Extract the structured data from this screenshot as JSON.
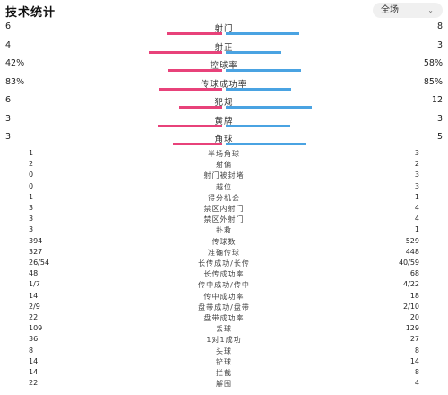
{
  "header": {
    "title": "技术统计",
    "filter_value": "全场",
    "chevron": "⌄"
  },
  "colors": {
    "home": "#e8427a",
    "away": "#4aa3e2"
  },
  "bar_stats": [
    {
      "label": "射门",
      "home": "6",
      "away": "8",
      "home_share": 0.43,
      "away_share": 0.57
    },
    {
      "label": "射正",
      "home": "4",
      "away": "3",
      "home_share": 0.57,
      "away_share": 0.43
    },
    {
      "label": "控球率",
      "home": "42%",
      "away": "58%",
      "home_share": 0.42,
      "away_share": 0.58
    },
    {
      "label": "传球成功率",
      "home": "83%",
      "away": "85%",
      "home_share": 0.49,
      "away_share": 0.51
    },
    {
      "label": "犯规",
      "home": "6",
      "away": "12",
      "home_share": 0.33,
      "away_share": 0.67
    },
    {
      "label": "黄牌",
      "home": "3",
      "away": "3",
      "home_share": 0.5,
      "away_share": 0.5
    },
    {
      "label": "角球",
      "home": "3",
      "away": "5",
      "home_share": 0.38,
      "away_share": 0.62
    }
  ],
  "detail_stats": [
    {
      "home": "1",
      "label": "半场角球",
      "away": "3"
    },
    {
      "home": "2",
      "label": "射偏",
      "away": "2"
    },
    {
      "home": "0",
      "label": "射门被封堵",
      "away": "3"
    },
    {
      "home": "0",
      "label": "越位",
      "away": "3"
    },
    {
      "home": "1",
      "label": "得分机会",
      "away": "1"
    },
    {
      "home": "3",
      "label": "禁区内射门",
      "away": "4"
    },
    {
      "home": "3",
      "label": "禁区外射门",
      "away": "4"
    },
    {
      "home": "3",
      "label": "扑救",
      "away": "1"
    },
    {
      "home": "394",
      "label": "传球数",
      "away": "529"
    },
    {
      "home": "327",
      "label": "准确传球",
      "away": "448"
    },
    {
      "home": "26/54",
      "label": "长传成功/长传",
      "away": "40/59"
    },
    {
      "home": "48",
      "label": "长传成功率",
      "away": "68"
    },
    {
      "home": "1/7",
      "label": "传中成功/传中",
      "away": "4/22"
    },
    {
      "home": "14",
      "label": "传中成功率",
      "away": "18"
    },
    {
      "home": "2/9",
      "label": "盘带成功/盘带",
      "away": "2/10"
    },
    {
      "home": "22",
      "label": "盘带成功率",
      "away": "20"
    },
    {
      "home": "109",
      "label": "丢球",
      "away": "129"
    },
    {
      "home": "36",
      "label": "1对1成功",
      "away": "27"
    },
    {
      "home": "8",
      "label": "头球",
      "away": "8"
    },
    {
      "home": "14",
      "label": "铲球",
      "away": "14"
    },
    {
      "home": "14",
      "label": "拦截",
      "away": "8"
    },
    {
      "home": "22",
      "label": "解围",
      "away": "4"
    }
  ]
}
